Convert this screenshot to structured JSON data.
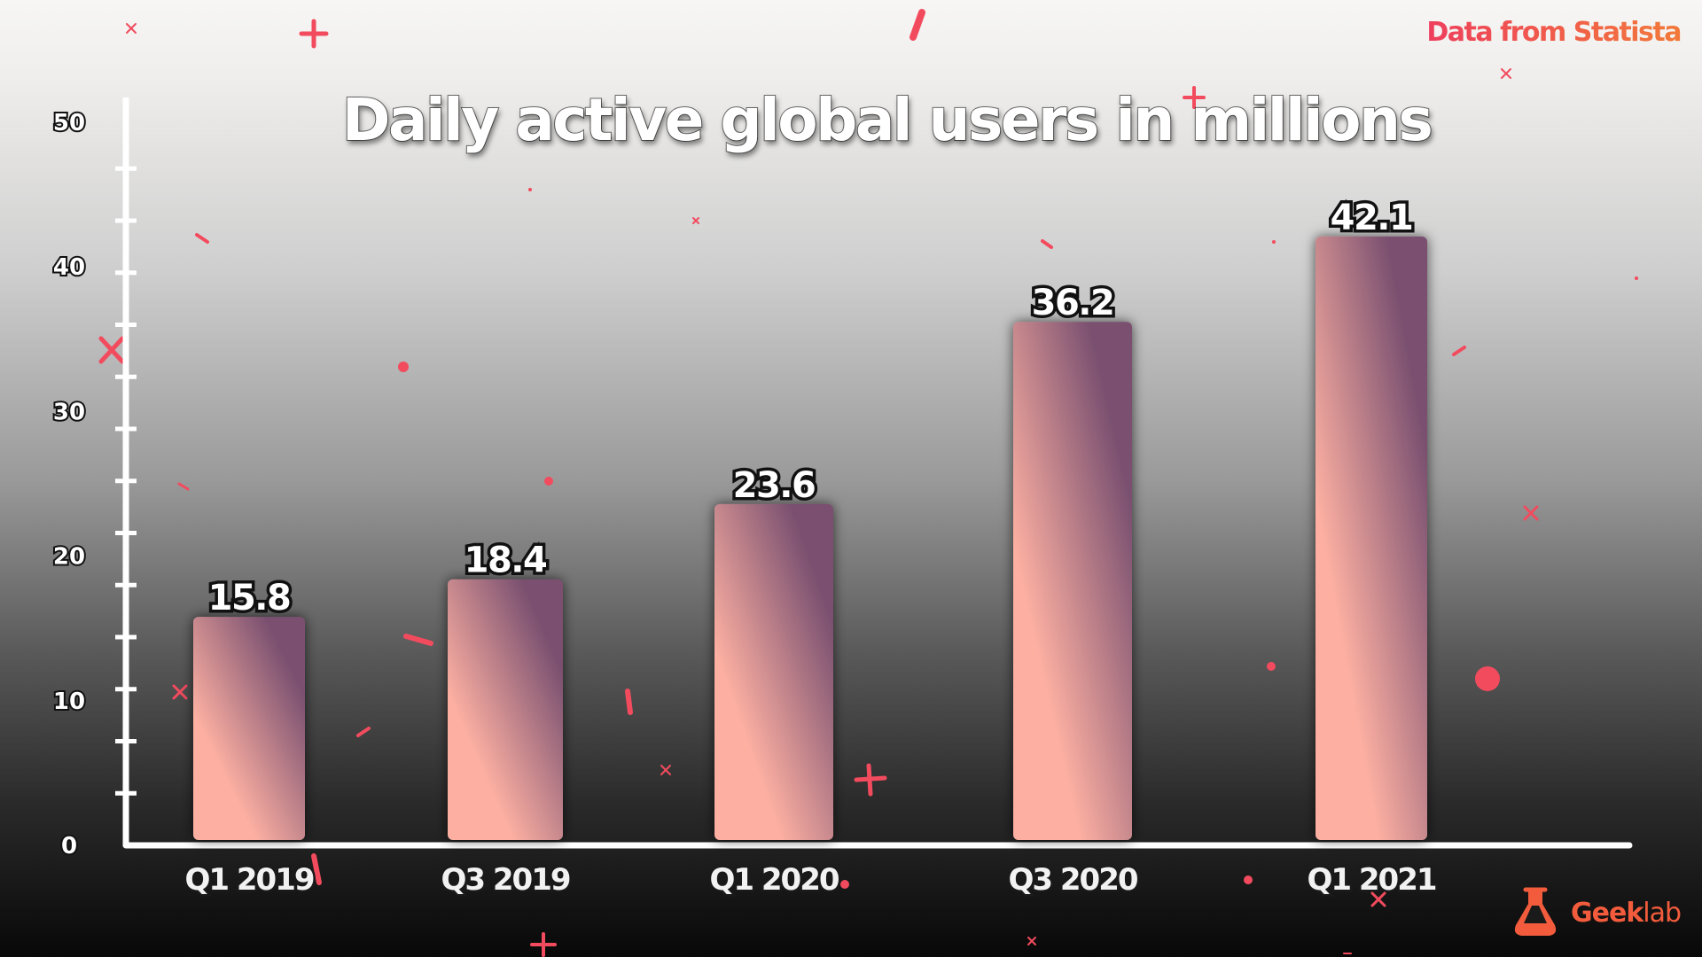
{
  "source_note": "Data from Statista",
  "brand": {
    "name_bold": "Geek",
    "name_light": "lab",
    "icon": "flask-icon",
    "color": "#f25c3c"
  },
  "colors": {
    "accent": "#f24b5e",
    "bar_top": "#7a5070",
    "bar_bottom": "#fdb0a2",
    "source_text": "#ee4b55"
  },
  "chart_data": {
    "type": "bar",
    "title": "Daily active global users in millions",
    "xlabel": "",
    "ylabel": "",
    "categories": [
      "Q1 2019",
      "Q3 2019",
      "Q1 2020",
      "Q3 2020",
      "Q1 2021"
    ],
    "values": [
      15.8,
      18.4,
      23.6,
      36.2,
      42.1
    ],
    "value_labels": [
      "15.8",
      "18.4",
      "23.6",
      "36.2",
      "42.1"
    ],
    "ylim": [
      0,
      50
    ],
    "yticks": [
      0,
      10,
      20,
      30,
      40,
      50
    ],
    "ytick_labels": [
      "0",
      "10",
      "20",
      "30",
      "40",
      "50"
    ],
    "minor_tick_step": 3.6,
    "grid": false,
    "legend": "none"
  }
}
